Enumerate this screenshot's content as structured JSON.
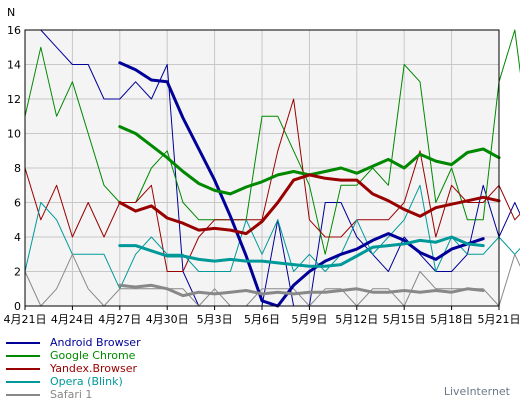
{
  "chart_data": {
    "type": "line",
    "ylabel": "N",
    "ylim": [
      0,
      16
    ],
    "yticks": [
      0,
      2,
      4,
      6,
      8,
      10,
      12,
      14,
      16
    ],
    "grid": true,
    "legend_position": "bottom-left",
    "x_range": [
      0,
      30
    ],
    "xtick_positions": [
      0,
      3,
      6,
      9,
      12,
      15,
      18,
      21,
      24,
      27,
      30
    ],
    "xtick_labels": [
      "4月21日",
      "4月24日",
      "4月27日",
      "4月30日",
      "5月3日",
      "5月6日",
      "5月9日",
      "5月12日",
      "5月15日",
      "5月18日",
      "5月21日"
    ],
    "series": [
      {
        "name": "Android Browser",
        "color": "#000099",
        "raw_start": 0,
        "raw": [
          16,
          16,
          15,
          14,
          14,
          12,
          12,
          13,
          12,
          14,
          2,
          0,
          0,
          0,
          0,
          0,
          5,
          0,
          0,
          6,
          6,
          4,
          3,
          2,
          4,
          3,
          2,
          2,
          3,
          7,
          4,
          6,
          4
        ],
        "smooth_start": 6,
        "smooth": [
          14.1,
          13.7,
          13.1,
          13.0,
          10.9,
          9.1,
          7.3,
          5.2,
          2.9,
          0.3,
          0.0,
          1.2,
          2.0,
          2.6,
          3.0,
          3.3,
          3.8,
          4.2,
          3.8,
          3.1,
          2.7,
          3.3,
          3.6,
          3.9
        ]
      },
      {
        "name": "Google Chrome",
        "color": "#008800",
        "raw_start": 0,
        "raw": [
          11,
          15,
          11,
          13,
          10,
          7,
          6,
          6,
          8,
          9,
          6,
          5,
          5,
          5,
          5,
          11,
          11,
          9,
          7,
          3,
          7,
          7,
          8,
          7,
          14,
          13,
          6,
          8,
          5,
          5,
          13,
          16,
          9
        ],
        "smooth_start": 6,
        "smooth": [
          10.4,
          10.0,
          9.3,
          8.6,
          7.8,
          7.1,
          6.7,
          6.5,
          6.9,
          7.2,
          7.6,
          7.8,
          7.6,
          7.8,
          8.0,
          7.7,
          8.1,
          8.5,
          8.0,
          8.8,
          8.4,
          8.2,
          8.9,
          9.1,
          8.6
        ]
      },
      {
        "name": "Yandex.Browser",
        "color": "#990000",
        "raw_start": 0,
        "raw": [
          8,
          5,
          7,
          4,
          6,
          4,
          6,
          6,
          7,
          2,
          2,
          4,
          5,
          5,
          5,
          5,
          9,
          12,
          5,
          4,
          4,
          5,
          5,
          5,
          6,
          9,
          4,
          7,
          6,
          6,
          7,
          5,
          6
        ],
        "smooth_start": 6,
        "smooth": [
          6.0,
          5.5,
          5.8,
          5.1,
          4.8,
          4.4,
          4.5,
          4.4,
          4.2,
          4.9,
          6.0,
          7.3,
          7.6,
          7.4,
          7.3,
          7.3,
          6.5,
          6.1,
          5.6,
          5.2,
          5.7,
          5.9,
          6.1,
          6.3,
          6.1
        ]
      },
      {
        "name": "Opera (Blink)",
        "color": "#009999",
        "raw_start": 0,
        "raw": [
          2,
          6,
          5,
          3,
          3,
          3,
          1,
          3,
          4,
          3,
          3,
          2,
          2,
          2,
          5,
          3,
          5,
          2,
          3,
          2,
          3,
          5,
          3,
          4,
          5,
          7,
          2,
          4,
          3,
          3,
          4,
          3,
          4
        ],
        "smooth_start": 6,
        "smooth": [
          3.5,
          3.5,
          3.2,
          2.9,
          2.9,
          2.7,
          2.6,
          2.7,
          2.6,
          2.6,
          2.5,
          2.4,
          2.3,
          2.3,
          2.4,
          2.9,
          3.4,
          3.5,
          3.6,
          3.8,
          3.7,
          4.0,
          3.6,
          3.5
        ]
      },
      {
        "name": "Safari 1",
        "color": "#888888",
        "raw_start": 0,
        "raw": [
          2,
          0,
          1,
          3,
          1,
          0,
          1,
          1,
          1,
          1,
          1,
          0,
          1,
          0,
          0,
          1,
          1,
          1,
          0,
          1,
          1,
          0,
          1,
          1,
          0,
          2,
          1,
          1,
          1,
          1,
          0,
          3,
          1
        ],
        "smooth_start": 6,
        "smooth": [
          1.2,
          1.1,
          1.2,
          1.0,
          0.6,
          0.8,
          0.7,
          0.8,
          0.9,
          0.7,
          0.8,
          0.7,
          0.8,
          0.8,
          0.9,
          1.0,
          0.8,
          0.8,
          0.9,
          0.8,
          0.9,
          0.8,
          1.0,
          0.9
        ]
      }
    ]
  },
  "branding": "LiveInternet"
}
